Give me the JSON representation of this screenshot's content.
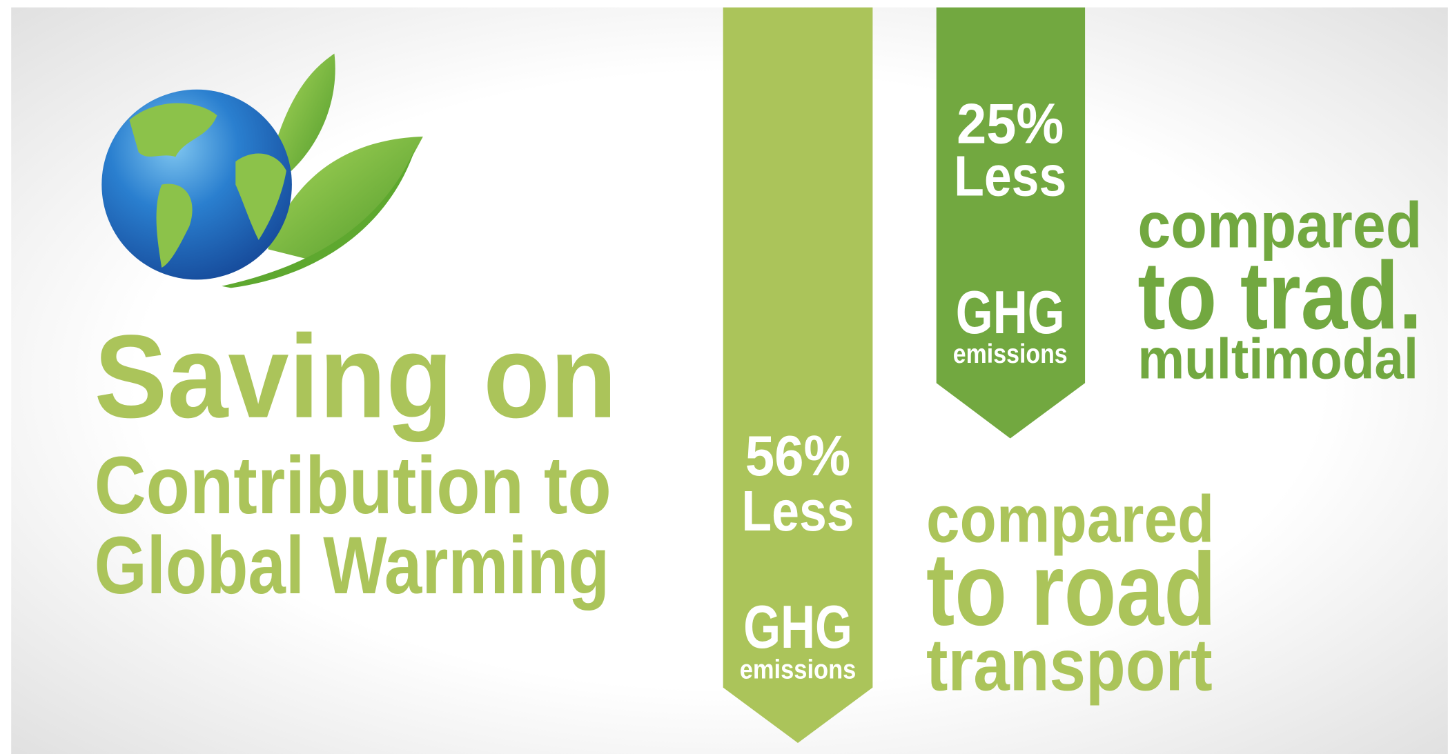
{
  "title": {
    "line1": "Saving on",
    "line2": "Contribution to",
    "line3": "Global Warming"
  },
  "banners": [
    {
      "percent": "56%",
      "less": "Less",
      "ghg": "GHG",
      "emissions": "emissions",
      "comparison": [
        "compared",
        "to road",
        "transport"
      ]
    },
    {
      "percent": "25%",
      "less": "Less",
      "ghg": "GHG",
      "emissions": "emissions",
      "comparison": [
        "compared",
        "to trad.",
        "multimodal"
      ]
    }
  ]
}
